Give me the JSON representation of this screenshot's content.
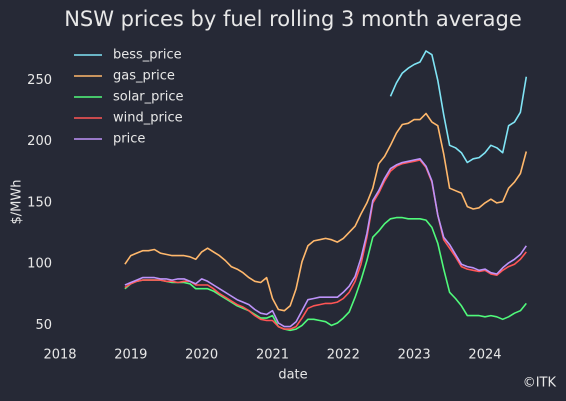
{
  "chart_data": {
    "type": "line",
    "title": "NSW prices by fuel rolling 3 month average",
    "xlabel": "date",
    "ylabel": "$/MWh",
    "footer": "©ITK",
    "x": [
      "2018-12",
      "2019-01",
      "2019-02",
      "2019-03",
      "2019-04",
      "2019-05",
      "2019-06",
      "2019-07",
      "2019-08",
      "2019-09",
      "2019-10",
      "2019-11",
      "2019-12",
      "2020-01",
      "2020-02",
      "2020-03",
      "2020-04",
      "2020-05",
      "2020-06",
      "2020-07",
      "2020-08",
      "2020-09",
      "2020-10",
      "2020-11",
      "2020-12",
      "2021-01",
      "2021-02",
      "2021-03",
      "2021-04",
      "2021-05",
      "2021-06",
      "2021-07",
      "2021-08",
      "2021-09",
      "2021-10",
      "2021-11",
      "2021-12",
      "2022-01",
      "2022-02",
      "2022-03",
      "2022-04",
      "2022-05",
      "2022-06",
      "2022-07",
      "2022-08",
      "2022-09",
      "2022-10",
      "2022-11",
      "2022-12",
      "2023-01",
      "2023-02",
      "2023-03",
      "2023-04",
      "2023-05",
      "2023-06",
      "2023-07",
      "2023-08",
      "2023-09",
      "2023-10",
      "2023-11",
      "2023-12",
      "2024-01",
      "2024-02",
      "2024-03",
      "2024-04",
      "2024-05",
      "2024-06",
      "2024-07",
      "2024-08"
    ],
    "series": [
      {
        "name": "bess_price",
        "color": "#80e4f5",
        "values": [
          null,
          null,
          null,
          null,
          null,
          null,
          null,
          null,
          null,
          null,
          null,
          null,
          null,
          null,
          null,
          null,
          null,
          null,
          null,
          null,
          null,
          null,
          null,
          null,
          null,
          null,
          null,
          null,
          null,
          null,
          null,
          null,
          null,
          null,
          null,
          null,
          null,
          null,
          null,
          null,
          null,
          null,
          null,
          null,
          null,
          237,
          248,
          256,
          260,
          263,
          265,
          274,
          271,
          250,
          222,
          197,
          195,
          191,
          183,
          186,
          187,
          191,
          197,
          195,
          191,
          213,
          216,
          224,
          253
        ]
      },
      {
        "name": "gas_price",
        "color": "#ffb86c",
        "values": [
          100,
          107,
          109,
          111,
          111,
          112,
          109,
          108,
          107,
          107,
          107,
          106,
          104,
          110,
          113,
          110,
          107,
          103,
          98,
          96,
          93,
          89,
          86,
          85,
          89,
          72,
          63,
          62,
          66,
          80,
          102,
          115,
          119,
          120,
          121,
          120,
          118,
          121,
          126,
          131,
          141,
          150,
          162,
          182,
          188,
          197,
          207,
          214,
          215,
          218,
          218,
          223,
          216,
          213,
          190,
          162,
          160,
          158,
          147,
          145,
          146,
          150,
          153,
          150,
          151,
          162,
          167,
          174,
          192
        ]
      },
      {
        "name": "solar_price",
        "color": "#50fa7b",
        "values": [
          80,
          84,
          86,
          87,
          87,
          87,
          87,
          86,
          85,
          85,
          85,
          84,
          80,
          80,
          80,
          78,
          75,
          72,
          69,
          66,
          64,
          62,
          59,
          56,
          56,
          58,
          49,
          47,
          46,
          47,
          50,
          55,
          55,
          54,
          53,
          50,
          52,
          56,
          61,
          73,
          87,
          103,
          122,
          127,
          133,
          137,
          138,
          138,
          137,
          137,
          137,
          136,
          130,
          117,
          96,
          77,
          72,
          66,
          58,
          58,
          58,
          57,
          58,
          57,
          55,
          57,
          60,
          62,
          68
        ]
      },
      {
        "name": "wind_price",
        "color": "#ff5555",
        "values": [
          81,
          84,
          86,
          87,
          87,
          87,
          87,
          86,
          86,
          85,
          86,
          86,
          83,
          83,
          83,
          80,
          76,
          73,
          70,
          67,
          65,
          62,
          58,
          55,
          54,
          54,
          49,
          47,
          47,
          49,
          56,
          64,
          66,
          67,
          68,
          68,
          69,
          72,
          77,
          86,
          100,
          122,
          150,
          158,
          168,
          176,
          180,
          182,
          183,
          184,
          185,
          179,
          167,
          140,
          120,
          113,
          106,
          98,
          96,
          95,
          94,
          95,
          92,
          91,
          95,
          98,
          100,
          104,
          110
        ]
      },
      {
        "name": "price",
        "color": "#bd93f9",
        "values": [
          83,
          85,
          87,
          89,
          89,
          89,
          88,
          88,
          87,
          88,
          88,
          86,
          84,
          88,
          86,
          83,
          80,
          77,
          74,
          71,
          69,
          67,
          63,
          60,
          59,
          62,
          52,
          49,
          49,
          53,
          62,
          71,
          72,
          73,
          73,
          73,
          73,
          77,
          82,
          90,
          105,
          125,
          152,
          160,
          170,
          178,
          181,
          183,
          184,
          185,
          186,
          180,
          168,
          140,
          122,
          116,
          108,
          100,
          98,
          97,
          95,
          96,
          93,
          92,
          97,
          101,
          104,
          108,
          115
        ]
      }
    ],
    "xlim": [
      "2018-01",
      "2024-11"
    ],
    "xticks": [
      {
        "value": "2018-01",
        "label": "2018"
      },
      {
        "value": "2019-01",
        "label": "2019"
      },
      {
        "value": "2020-01",
        "label": "2020"
      },
      {
        "value": "2021-01",
        "label": "2021"
      },
      {
        "value": "2022-01",
        "label": "2022"
      },
      {
        "value": "2023-01",
        "label": "2023"
      },
      {
        "value": "2024-01",
        "label": "2024"
      }
    ],
    "ylim": [
      34,
      283
    ],
    "yticks": [
      50,
      100,
      150,
      200,
      250
    ],
    "grid": false,
    "legend": "upper left",
    "background": "#262936"
  }
}
